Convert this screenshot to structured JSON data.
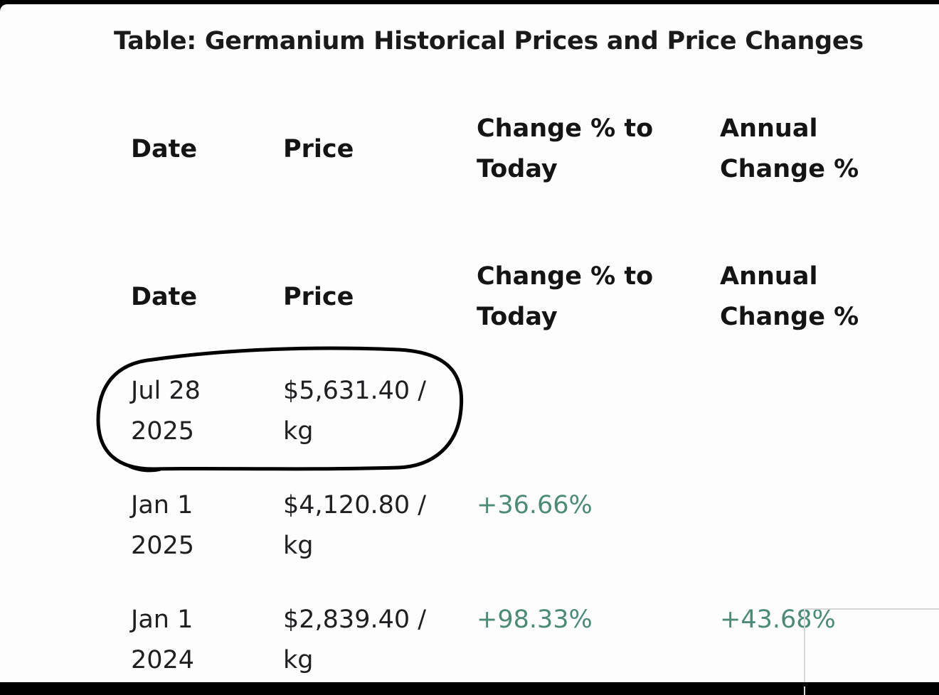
{
  "title": "Table: Germanium Historical Prices and Price Changes",
  "headers": [
    {
      "date": "Date",
      "price": "Price",
      "change_l1": "Change % to",
      "change_l2": "Today",
      "annual_l1": "Annual",
      "annual_l2": "Change %"
    },
    {
      "date": "Date",
      "price": "Price",
      "change_l1": "Change % to",
      "change_l2": "Today",
      "annual_l1": "Annual",
      "annual_l2": "Change %"
    }
  ],
  "rows": [
    {
      "date_l1": "Jul 28",
      "date_l2": "2025",
      "price_l1": "$5,631.40 /",
      "price_l2": "kg",
      "change": "",
      "annual": ""
    },
    {
      "date_l1": "Jan 1",
      "date_l2": "2025",
      "price_l1": "$4,120.80 /",
      "price_l2": "kg",
      "change": "+36.66%",
      "annual": ""
    },
    {
      "date_l1": "Jan 1",
      "date_l2": "2024",
      "price_l1": "$2,839.40 /",
      "price_l2": "kg",
      "change": "+98.33%",
      "annual": "+43.68%"
    }
  ],
  "colors": {
    "text": "#1f1f22",
    "positive_change": "#4d8a77",
    "annotation_ring": "#000000"
  }
}
